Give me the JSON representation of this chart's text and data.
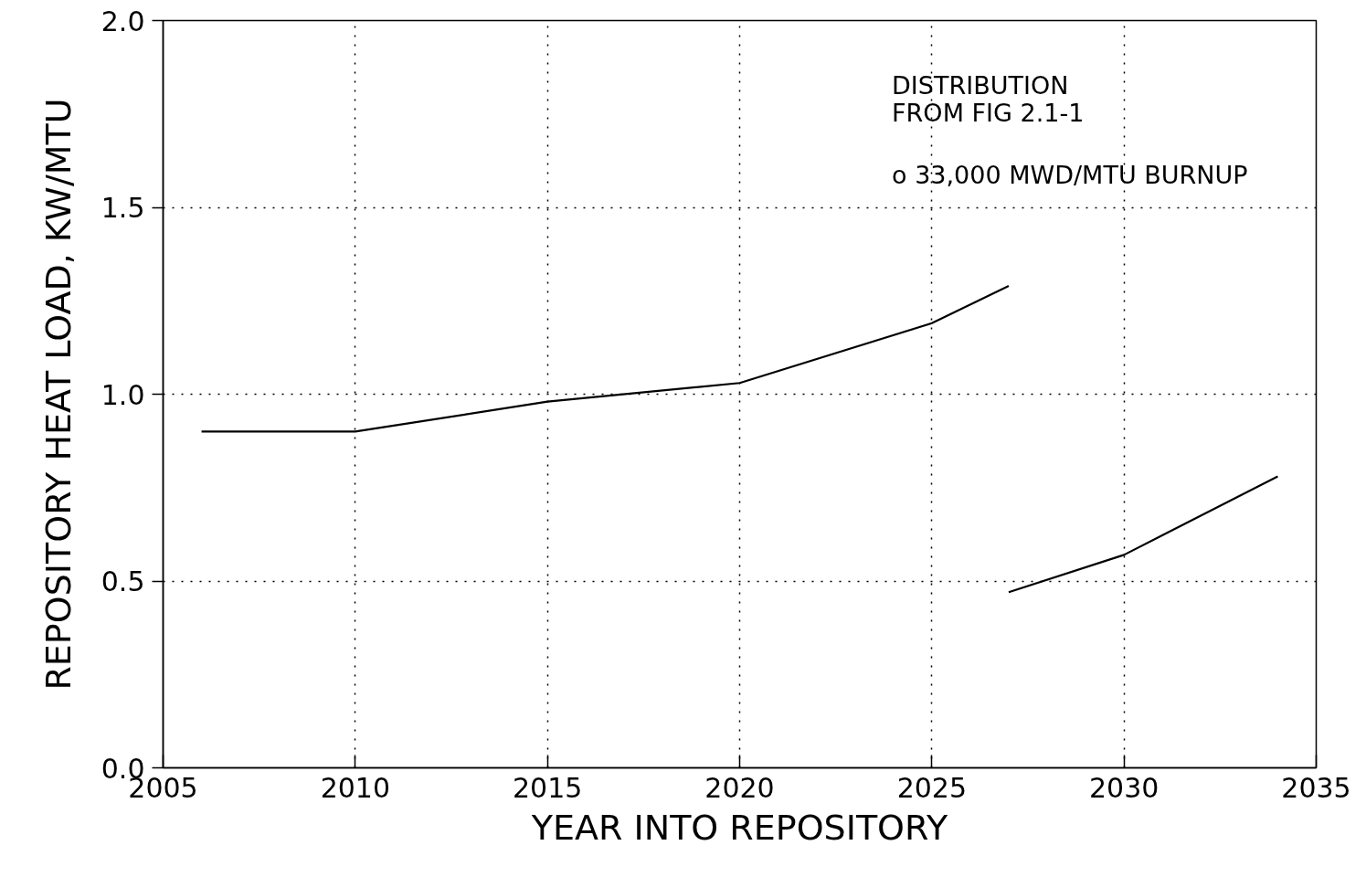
{
  "chart_data": {
    "type": "line",
    "xlabel": "YEAR INTO REPOSITORY",
    "ylabel": "REPOSITORY HEAT LOAD, KW/MTU",
    "annotations": [
      "DISTRIBUTION\nFROM FIG 2.1-1",
      "o 33,000 MWD/MTU BURNUP"
    ],
    "series": [
      {
        "x": [
          2006,
          2010,
          2015,
          2020,
          2025,
          2027
        ],
        "values": [
          0.9,
          0.9,
          0.98,
          1.03,
          1.19,
          1.29
        ],
        "color": "#000000"
      },
      {
        "x": [
          2027,
          2030,
          2034
        ],
        "values": [
          0.47,
          0.57,
          0.78
        ],
        "color": "#000000"
      }
    ],
    "xlim": [
      2005,
      2035
    ],
    "xticks": [
      2005,
      2010,
      2015,
      2020,
      2025,
      2030,
      2035
    ],
    "ylim": [
      0,
      2
    ],
    "yticks": [
      {
        "value": 0,
        "label": "0.0"
      },
      {
        "value": 0.5,
        "label": "0.5"
      },
      {
        "value": 1,
        "label": "1.0"
      },
      {
        "value": 1.5,
        "label": "1.5"
      },
      {
        "value": 2,
        "label": "2.0"
      }
    ],
    "grid": true,
    "line_style": "solid"
  }
}
